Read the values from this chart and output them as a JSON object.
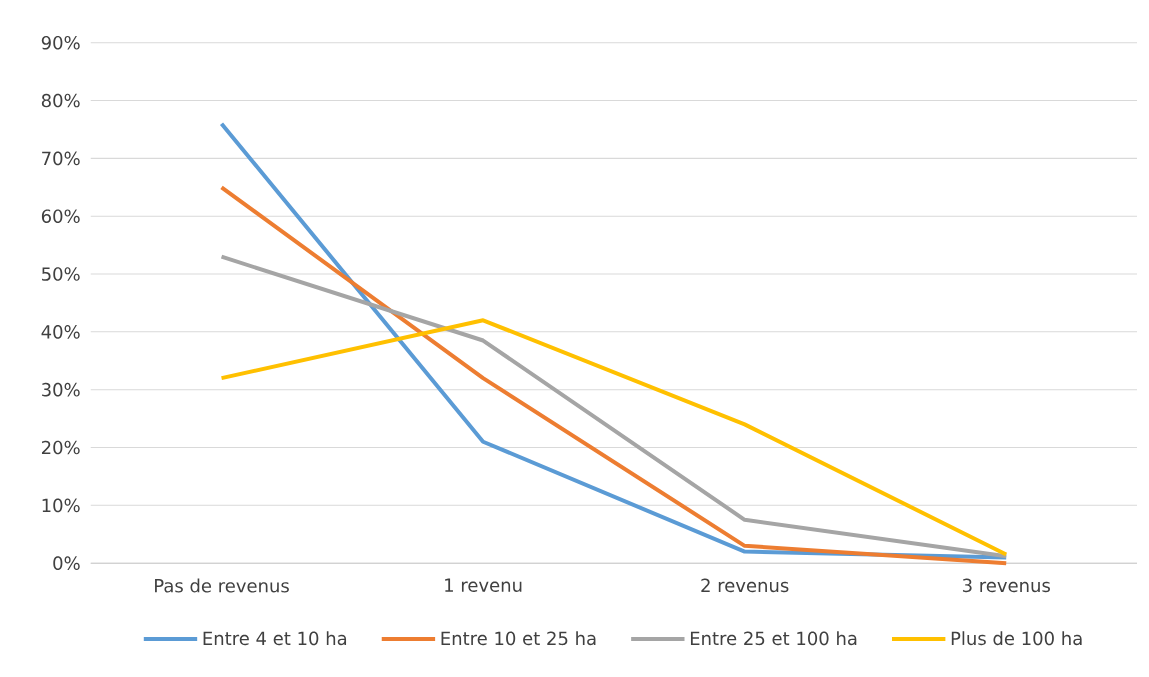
{
  "chart_data": {
    "type": "line",
    "categories": [
      "Pas de revenus",
      "1 revenu",
      "2 revenus",
      "3 revenus"
    ],
    "series": [
      {
        "name": "Entre 4 et 10 ha",
        "color": "#5b9bd5",
        "values": [
          76,
          21,
          2,
          1
        ]
      },
      {
        "name": "Entre 10 et 25 ha",
        "color": "#ed7d31",
        "values": [
          65,
          32,
          3,
          0
        ]
      },
      {
        "name": "Entre 25 et 100 ha",
        "color": "#a5a5a5",
        "values": [
          53,
          38.5,
          7.5,
          1.2
        ]
      },
      {
        "name": "Plus de 100 ha",
        "color": "#ffc000",
        "values": [
          32,
          42,
          24,
          1.5
        ]
      }
    ],
    "ylim": [
      0,
      90
    ],
    "yticks": [
      {
        "value": 0,
        "label": "0%"
      },
      {
        "value": 10,
        "label": "10%"
      },
      {
        "value": 20,
        "label": "20%"
      },
      {
        "value": 30,
        "label": "30%"
      },
      {
        "value": 40,
        "label": "40%"
      },
      {
        "value": 50,
        "label": "50%"
      },
      {
        "value": 60,
        "label": "60%"
      },
      {
        "value": 70,
        "label": "70%"
      },
      {
        "value": 80,
        "label": "80%"
      },
      {
        "value": 90,
        "label": "90%"
      }
    ],
    "grid": "y",
    "legend": "bottom",
    "marker": "none",
    "line_style": "solid"
  }
}
